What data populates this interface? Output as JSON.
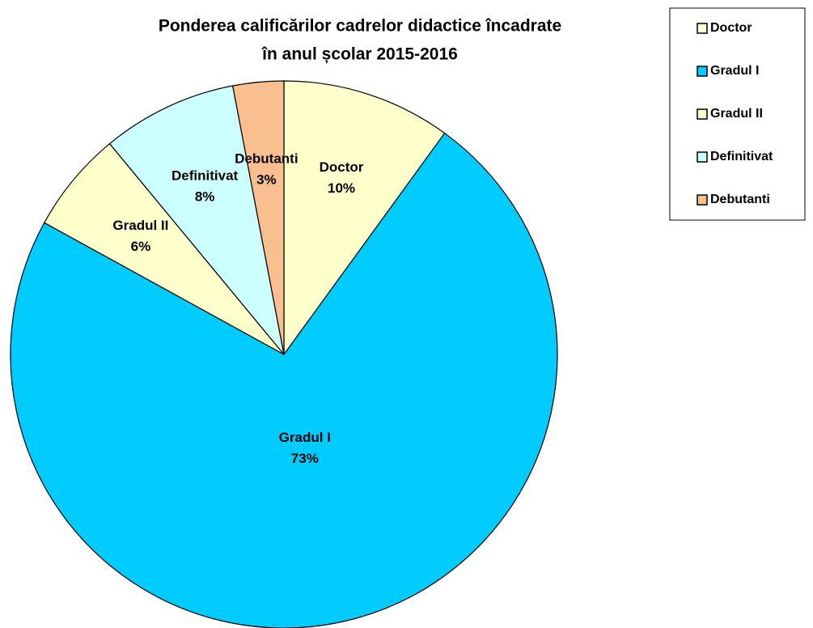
{
  "chart_data": {
    "type": "pie",
    "title": [
      "Ponderea calificărilor cadrelor didactice încadrate",
      "în anul școlar 2015-2016"
    ],
    "categories": [
      "Doctor",
      "Gradul I",
      "Gradul II",
      "Definitivat",
      "Debutanti"
    ],
    "values": [
      10,
      73,
      6,
      8,
      3
    ],
    "value_labels": [
      "10%",
      "73%",
      "6%",
      "8%",
      "3%"
    ],
    "colors": [
      "#ffffcc",
      "#00ccff",
      "#ffffcc",
      "#ccffff",
      "#f9bf8f"
    ],
    "legend": "right"
  }
}
